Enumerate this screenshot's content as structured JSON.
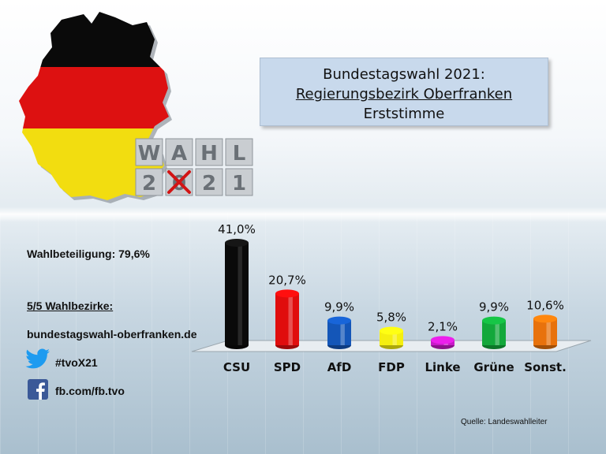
{
  "title": {
    "line1": "Bundestagswahl 2021:",
    "line2": "Regierungsbezirk Oberfranken",
    "line3": "Erststimme"
  },
  "logo": {
    "top_letters": [
      "W",
      "A",
      "H",
      "L"
    ],
    "bottom_letters": [
      "2",
      "0",
      "2",
      "1"
    ]
  },
  "info": {
    "turnout": "Wahlbeteiligung: 79,6%",
    "districts": "5/5 Wahlbezirke:",
    "website": "bundestagswahl-oberfranken.de",
    "twitter": "#tvoX21",
    "facebook": "fb.com/fb.tvo"
  },
  "source": "Quelle: Landeswahlleiter",
  "colors": {
    "CSU": "#0a0a0a",
    "SPD": "#e00d0d",
    "AfD": "#1456b8",
    "FDP": "#f5ef10",
    "Linke": "#c81ac8",
    "Grüne": "#13a83b",
    "Sonst.": "#e8720c"
  },
  "icons": [
    "twitter-icon",
    "facebook-icon",
    "germany-flag-map-icon",
    "ballot-cross-icon"
  ],
  "chart_data": {
    "type": "bar",
    "title": "Bundestagswahl 2021: Regierungsbezirk Oberfranken Erststimme",
    "categories": [
      "CSU",
      "SPD",
      "AfD",
      "FDP",
      "Linke",
      "Grüne",
      "Sonst."
    ],
    "values": [
      41.0,
      20.7,
      9.9,
      5.8,
      2.1,
      9.9,
      10.6
    ],
    "value_labels": [
      "41,0%",
      "20,7%",
      "9,9%",
      "5,8%",
      "2,1%",
      "9,9%",
      "10,6%"
    ],
    "unit": "%",
    "ylim": [
      0,
      41.0
    ],
    "grid": false,
    "legend": "none"
  }
}
